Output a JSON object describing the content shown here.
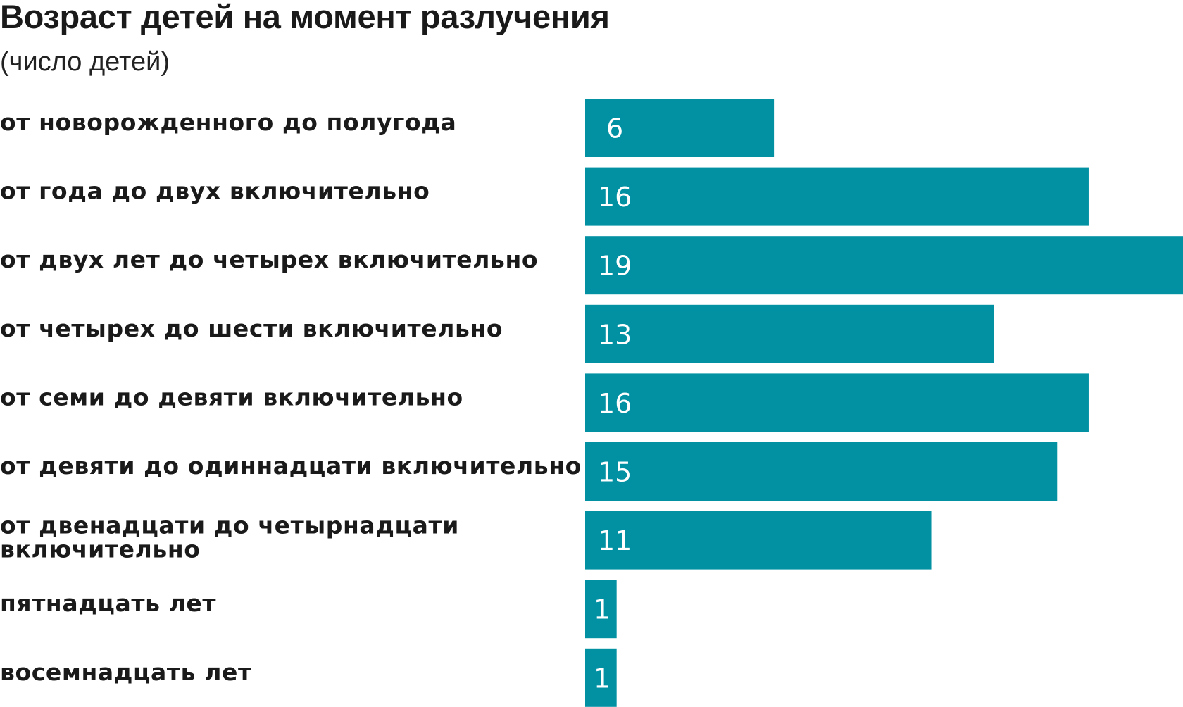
{
  "title": "Возраст детей на момент разлучения",
  "subtitle": "(число детей)",
  "colors": {
    "bar": "#0291a3",
    "label_text": "#1a1a1a",
    "value_text": "#ffffff",
    "background": "#ffffff"
  },
  "chart_data": {
    "type": "bar",
    "orientation": "horizontal",
    "title": "Возраст детей на момент разлучения",
    "subtitle": "(число детей)",
    "categories": [
      "от новорожденного до полугода",
      "от года до двух включительно",
      "от двух лет до четырех включительно",
      "от четырех до шести включительно",
      "от семи до девяти включительно",
      "от девяти до одиннадцати включительно",
      "от двенадцати до четырнадцати включительно",
      "пятнадцать лет",
      "восемнадцать лет"
    ],
    "values": [
      6,
      16,
      19,
      13,
      16,
      15,
      11,
      1,
      1
    ],
    "data_labels": [
      "6",
      "16",
      "19",
      "13",
      "16",
      "15",
      "11",
      "1",
      "1"
    ],
    "xlim": [
      0,
      19
    ],
    "grid": false,
    "legend": "none"
  }
}
